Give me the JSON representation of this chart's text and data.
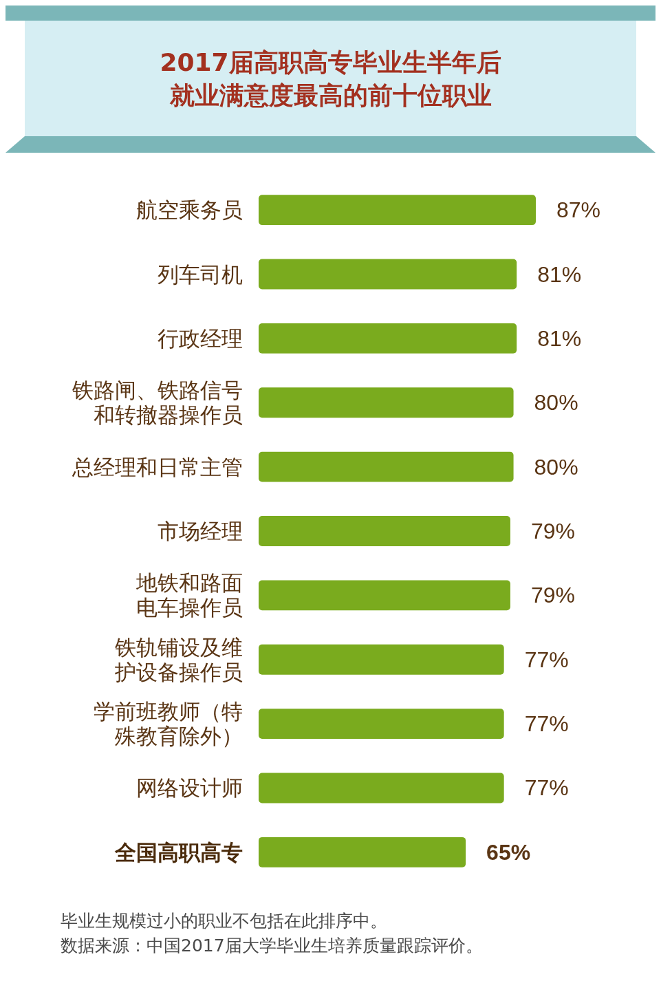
{
  "chart_data": {
    "type": "bar",
    "orientation": "horizontal",
    "title": "2017届高职高专毕业生半年后就业满意度最高的前十位职业",
    "categories": [
      "航空乘务员",
      "列车司机",
      "行政经理",
      "铁路闸、铁路信号和转撤器操作员",
      "总经理和日常主管",
      "市场经理",
      "地铁和路面电车操作员",
      "铁轨铺设及维护设备操作员",
      "学前班教师（特殊教育除外）",
      "网络设计师",
      "全国高职高专"
    ],
    "values": [
      87,
      81,
      81,
      80,
      80,
      79,
      79,
      77,
      77,
      77,
      65
    ],
    "value_labels": [
      "87%",
      "81%",
      "81%",
      "80%",
      "80%",
      "79%",
      "79%",
      "77%",
      "77%",
      "77%",
      "65%"
    ],
    "color": "#7aab1e",
    "annotations": [
      "毕业生规模过小的职业不包括在此排序中。",
      "数据来源：中国2017届大学毕业生培养质量跟踪评价。"
    ]
  }
}
